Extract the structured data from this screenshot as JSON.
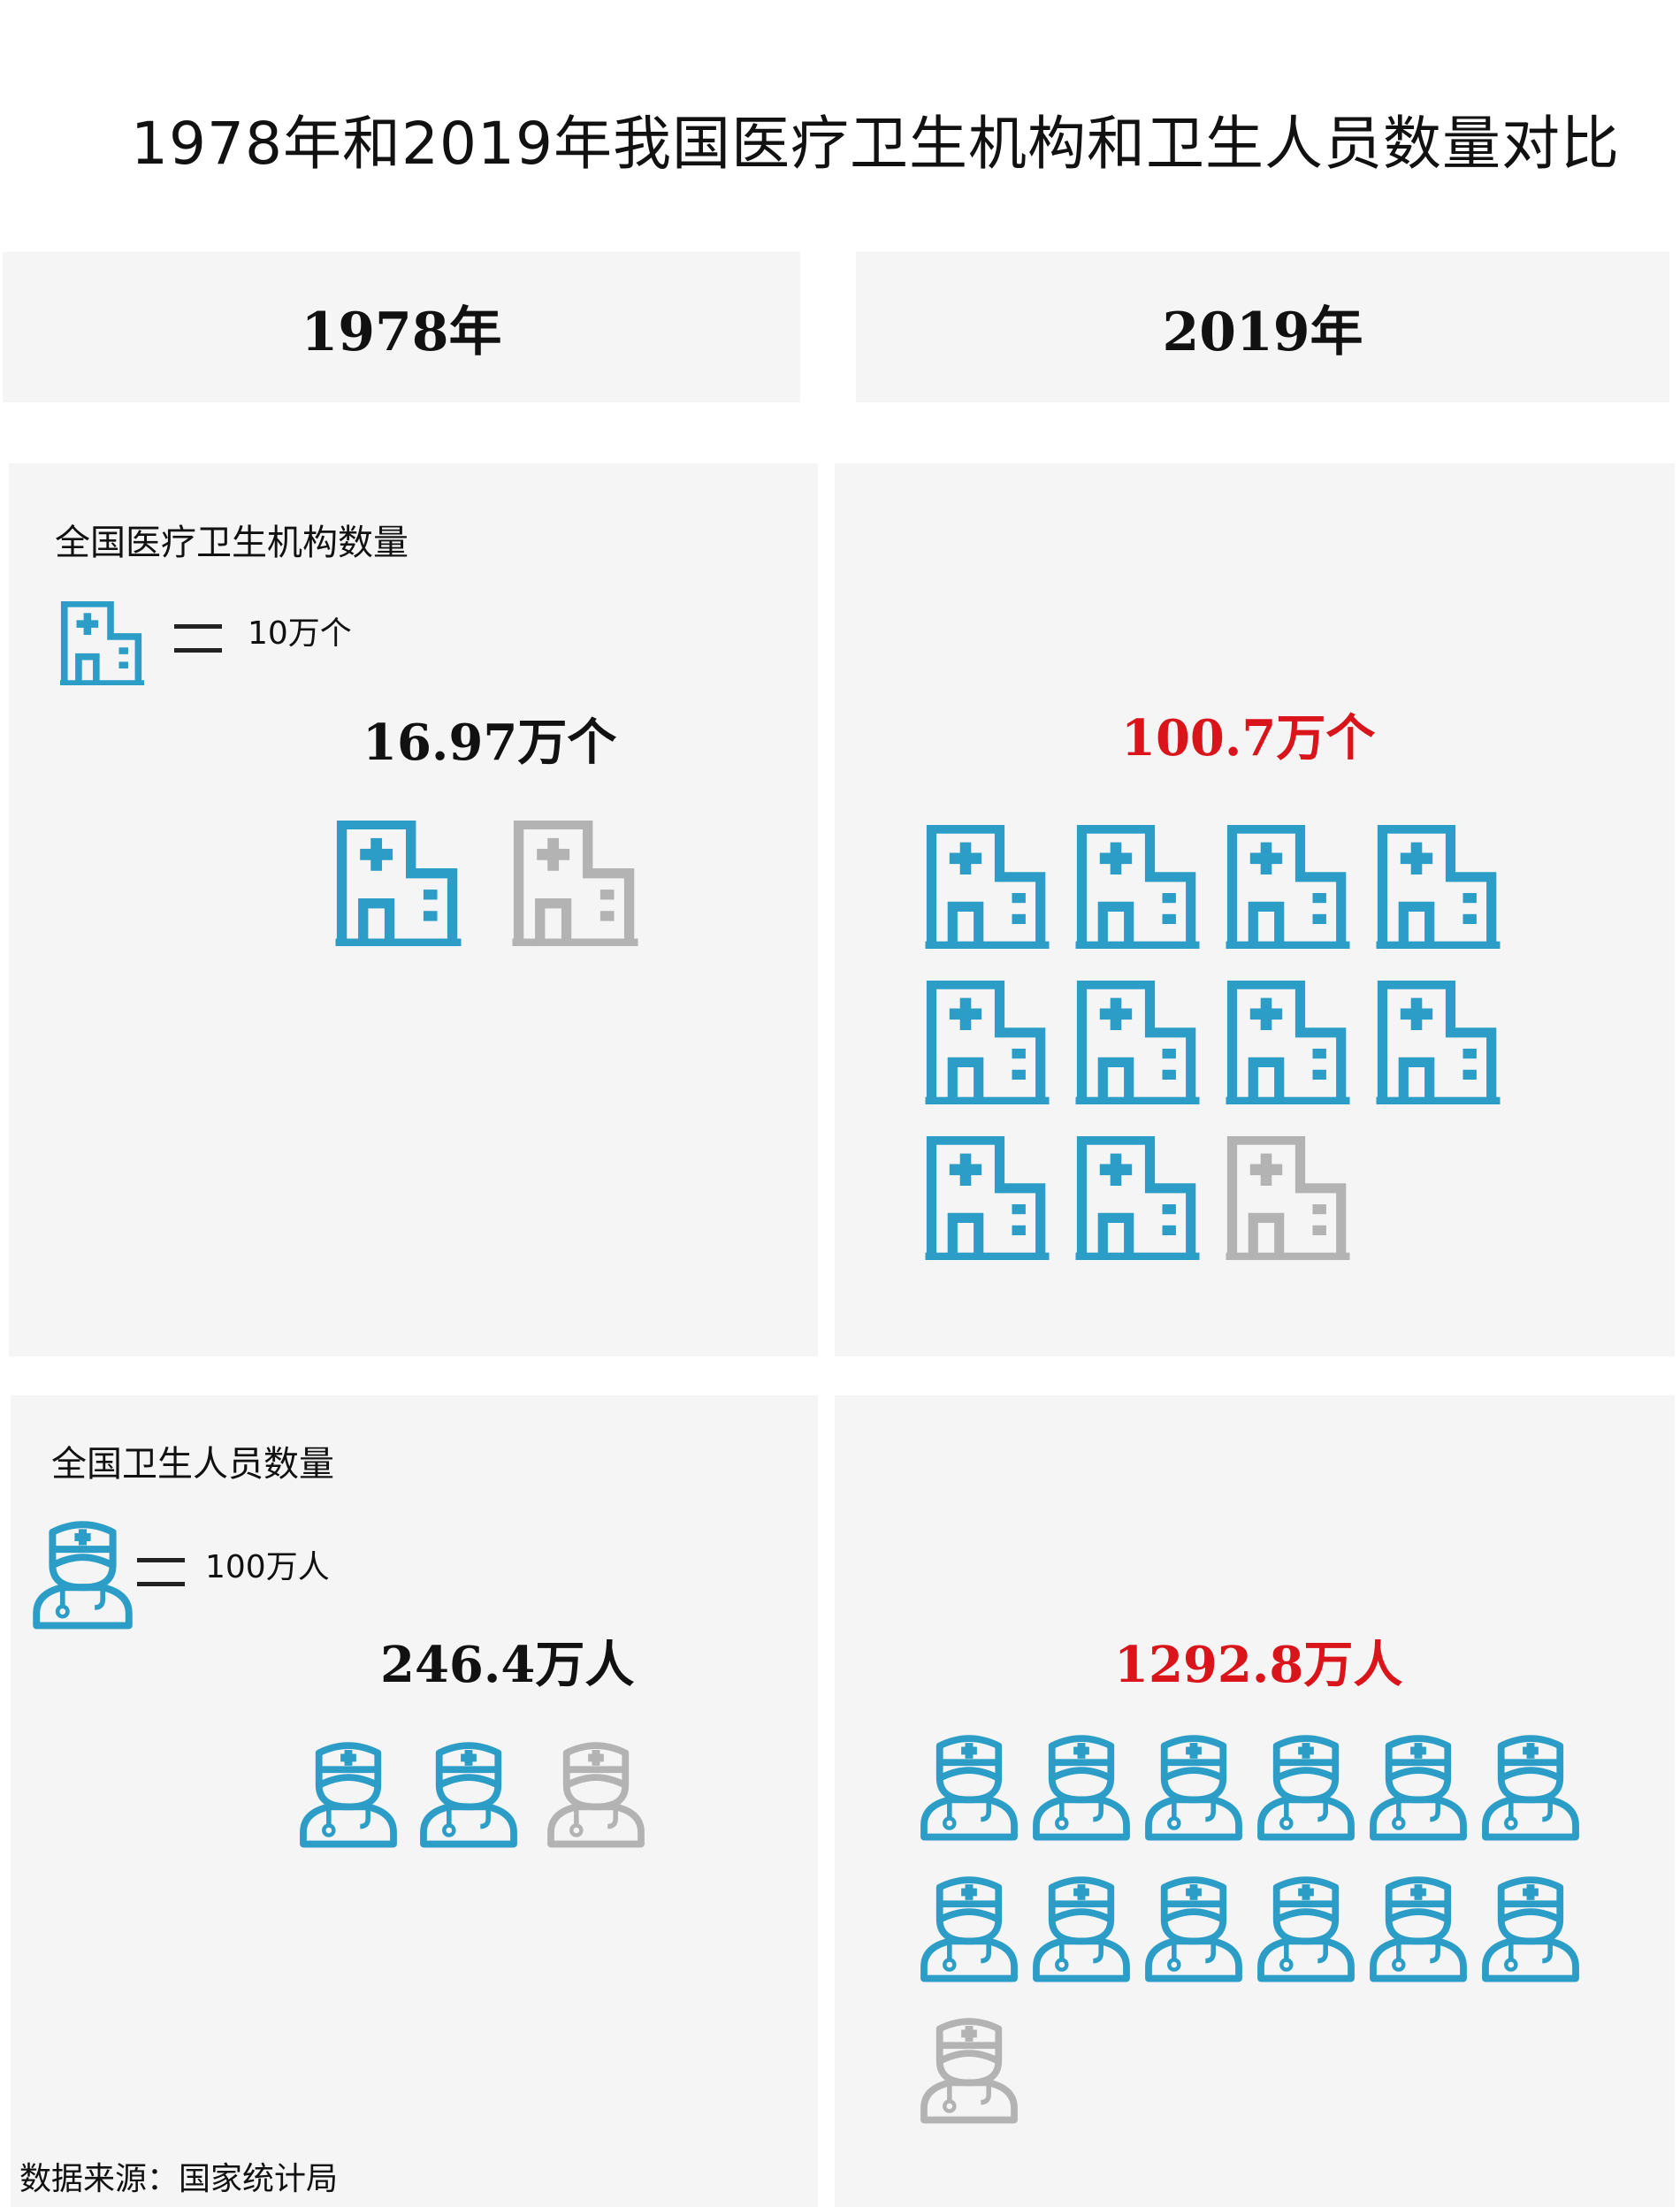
{
  "title": "1978年和2019年我国医疗卫生机构和卫生人员数量对比",
  "years": {
    "left": "1978年",
    "right": "2019年"
  },
  "institutions": {
    "label": "全国医疗卫生机构数量",
    "legend_unit": "10万个",
    "icon": "hospital-building-icon",
    "value_1978_text": "16.97万个",
    "value_2019_text": "100.7万个",
    "value_1978": 16.97,
    "value_2019": 100.7,
    "icon_scale": 10
  },
  "personnel": {
    "label": "全国卫生人员数量",
    "legend_unit": "100万人",
    "icon": "doctor-icon",
    "value_1978_text": "246.4万人",
    "value_2019_text": "1292.8万人",
    "value_1978": 246.4,
    "value_2019": 1292.8,
    "icon_scale": 100
  },
  "colors": {
    "icon_active": "#2b9dc6",
    "icon_inactive": "#b3b3b3",
    "highlight": "#d9151b",
    "panel": "#f5f5f5"
  },
  "source": "数据来源：国家统计局"
}
